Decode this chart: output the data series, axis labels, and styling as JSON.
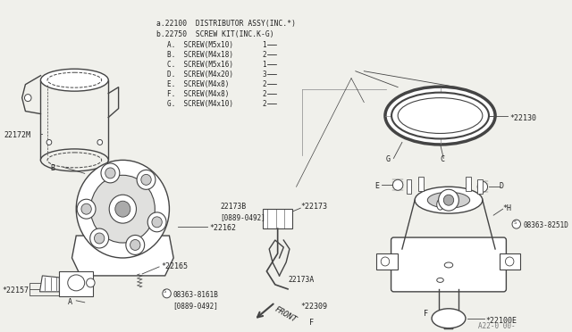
{
  "bg_color": "#f0f0eb",
  "line_color": "#444444",
  "text_color": "#222222",
  "fig_number": "A22-0 00-",
  "parts_list": [
    "a.22100  DISTRIBUTOR ASSY(INC.*)",
    "b.22750  SCREW KIT(INC.K-G)",
    "    A.  SCREW(M5x10)-----------1",
    "    B.  SCREW(M4x18)----------2",
    "    C.  SCREW(M5x16)-----------1",
    "    D.  SCREW(M4x20)-----------3",
    "    E.  SCREW(M4x8)   ---------2",
    "    F.  SCREW(M4x8)   ---------2",
    "    G.  SCREW(M4x10)-----------2"
  ]
}
